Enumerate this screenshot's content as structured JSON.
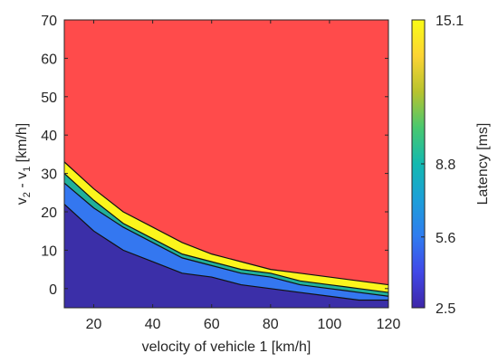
{
  "chart_data": {
    "type": "area",
    "x": [
      10,
      20,
      30,
      40,
      50,
      60,
      70,
      80,
      90,
      100,
      110,
      120
    ],
    "xlabel": "velocity of vehicle 1 [km/h]",
    "ylabel_parts": [
      "v",
      "2",
      " - v",
      "1",
      " [km/h]"
    ],
    "xlim": [
      10,
      120
    ],
    "ylim": [
      -5,
      70
    ],
    "xticks": [
      20,
      40,
      60,
      80,
      100,
      120
    ],
    "yticks": [
      0,
      10,
      20,
      30,
      40,
      50,
      60,
      70
    ],
    "boundaries": [
      {
        "values": [
          22,
          15,
          10,
          7,
          4,
          3,
          1,
          0,
          -1,
          -2,
          -3,
          -3
        ]
      },
      {
        "values": [
          27.5,
          21,
          16,
          12,
          8,
          6,
          4,
          3,
          1,
          0,
          -1,
          -2
        ]
      },
      {
        "values": [
          30,
          23,
          17,
          13,
          9,
          7,
          5,
          4,
          2,
          1,
          0,
          -1
        ]
      },
      {
        "values": [
          33,
          26,
          20,
          16,
          12,
          9,
          7,
          5,
          4,
          3,
          2,
          1
        ]
      }
    ],
    "bands": [
      {
        "color": "#3b2fa8",
        "lower": null,
        "upper": 0
      },
      {
        "color": "#3477f0",
        "lower": 0,
        "upper": 1
      },
      {
        "color": "#21b09a",
        "lower": 1,
        "upper": 2
      },
      {
        "color": "#fcf51c",
        "lower": 2,
        "upper": 3
      },
      {
        "color": "#ff4b4b",
        "lower": 3,
        "upper": null
      }
    ],
    "colorbar": {
      "label": "Latency [ms]",
      "ticks": [
        "15.1",
        "8.8",
        "5.6",
        "2.5"
      ],
      "tick_values": [
        15.1,
        8.8,
        5.6,
        2.5
      ],
      "range": [
        2.5,
        15.1
      ],
      "colors": [
        "#3e26a8",
        "#4148e8",
        "#2f7df0",
        "#1c9fd9",
        "#13b9b0",
        "#48c870",
        "#b7c32e",
        "#fcd434",
        "#f9fb15"
      ]
    }
  }
}
